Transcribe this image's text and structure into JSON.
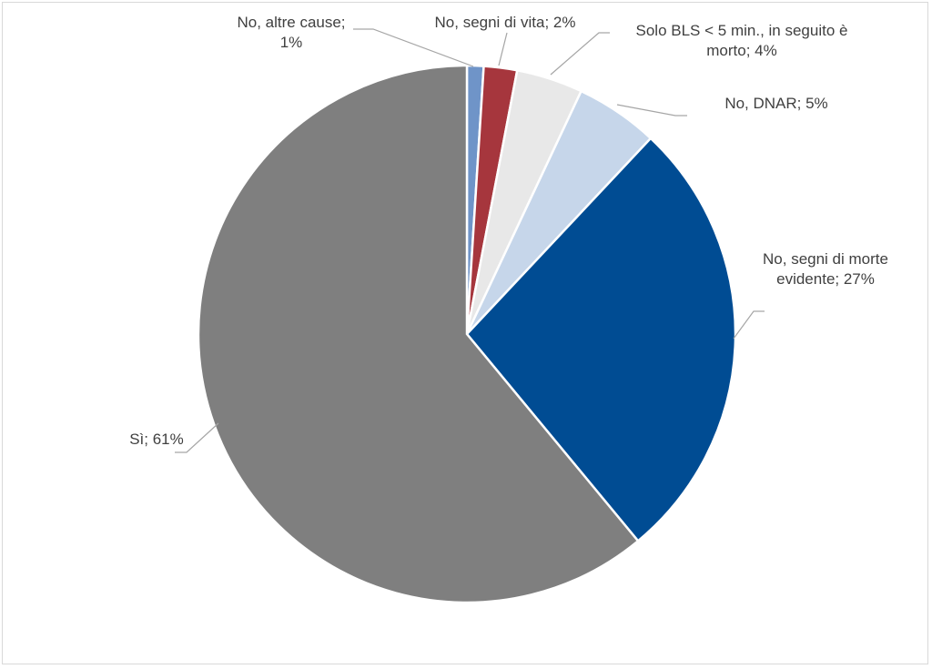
{
  "chart_data": {
    "type": "pie",
    "title": "",
    "start_angle_deg": 0,
    "direction": "clockwise",
    "slices": [
      {
        "label_lines": [
          "No, altre cause;",
          "1%"
        ],
        "value": 1,
        "color": "#6f94c8"
      },
      {
        "label_lines": [
          "No, segni di vita; 2%"
        ],
        "value": 2,
        "color": "#a6363d"
      },
      {
        "label_lines": [
          "Solo BLS < 5  min., in seguito è",
          "morto; 4%"
        ],
        "value": 4,
        "color": "#e8e8e8"
      },
      {
        "label_lines": [
          "No, DNAR; 5%"
        ],
        "value": 5,
        "color": "#c6d6ea"
      },
      {
        "label_lines": [
          "No, segni di morte",
          "evidente; 27%"
        ],
        "value": 27,
        "color": "#004c93"
      },
      {
        "label_lines": [
          "Sì; 61%"
        ],
        "value": 61,
        "color": "#7f7f7f"
      }
    ]
  }
}
